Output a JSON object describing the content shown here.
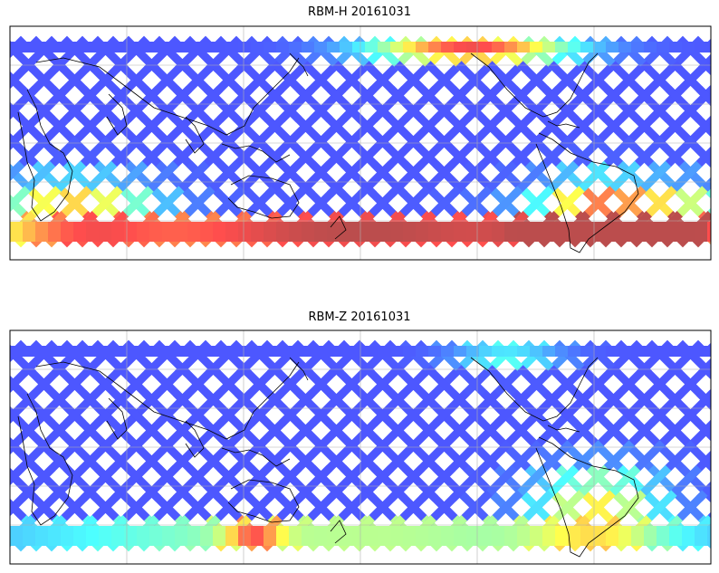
{
  "panels": [
    {
      "title": "RBM-H 20161031",
      "colormap": "jet",
      "high_regions": [
        "southern-ocean",
        "north-pacific-arctic",
        "south-atlantic"
      ]
    },
    {
      "title": "RBM-Z 20161031",
      "colormap": "jet",
      "high_regions": [
        "south-atlantic",
        "southern-ocean-patch"
      ]
    }
  ],
  "map": {
    "projection": "equirectangular",
    "gridlines": true,
    "coastlines": true
  }
}
